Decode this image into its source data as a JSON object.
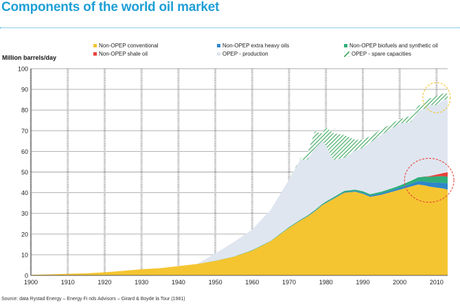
{
  "title": "Components of the world oil market",
  "chart_data": {
    "type": "area",
    "title": "Components of the world oil market",
    "ylabel": "Million barrels/day",
    "xlabel": "",
    "xlim": [
      1900,
      2013
    ],
    "ylim": [
      0,
      100
    ],
    "x_ticks": [
      "1900",
      "1910",
      "1920",
      "1930",
      "1940",
      "1950",
      "1960",
      "1970",
      "1980",
      "1990",
      "2000",
      "2010"
    ],
    "y_ticks": [
      "0",
      "10",
      "20",
      "30",
      "40",
      "50",
      "60",
      "70",
      "80",
      "90",
      "100"
    ],
    "grid": true,
    "stacking": "stacked",
    "x": [
      1900,
      1905,
      1910,
      1915,
      1920,
      1925,
      1930,
      1935,
      1940,
      1945,
      1950,
      1955,
      1960,
      1965,
      1970,
      1973,
      1975,
      1977,
      1979,
      1980,
      1982,
      1985,
      1988,
      1990,
      1992,
      1995,
      1998,
      2000,
      2003,
      2005,
      2007,
      2008,
      2010,
      2012,
      2013
    ],
    "series": [
      {
        "name": "Non-OPEP conventional",
        "color": "#f5c531",
        "values": [
          0.3,
          0.5,
          0.8,
          1.0,
          1.5,
          2.2,
          3.0,
          3.5,
          4.5,
          5.5,
          7.0,
          9.0,
          12.0,
          16.5,
          23.0,
          26.5,
          28.5,
          31.0,
          34.0,
          35.0,
          37.0,
          40.0,
          40.5,
          39.5,
          38.0,
          39.0,
          40.5,
          41.5,
          43.0,
          44.0,
          43.5,
          43.0,
          42.5,
          42.0,
          41.5
        ]
      },
      {
        "name": "Non-OPEP extra heavy oils",
        "color": "#2e86c9",
        "values": [
          0,
          0,
          0,
          0,
          0,
          0,
          0,
          0,
          0,
          0,
          0,
          0,
          0,
          0,
          0.1,
          0.1,
          0.2,
          0.2,
          0.2,
          0.2,
          0.3,
          0.3,
          0.4,
          0.5,
          0.6,
          0.7,
          0.8,
          1.0,
          1.3,
          1.6,
          1.9,
          2.0,
          2.4,
          2.8,
          3.0
        ]
      },
      {
        "name": "Non-OPEP biofuels and synthetic oil",
        "color": "#2fae7a",
        "values": [
          0,
          0,
          0,
          0,
          0,
          0,
          0,
          0,
          0,
          0,
          0.1,
          0.1,
          0.2,
          0.2,
          0.3,
          0.3,
          0.3,
          0.4,
          0.4,
          0.5,
          0.5,
          0.6,
          0.6,
          0.7,
          0.7,
          0.8,
          0.9,
          1.0,
          1.4,
          1.8,
          2.4,
          2.7,
          3.0,
          3.2,
          3.2
        ]
      },
      {
        "name": "Non-OPEP shale oil",
        "color": "#e8413a",
        "values": [
          0,
          0,
          0,
          0,
          0,
          0,
          0,
          0,
          0,
          0,
          0,
          0,
          0,
          0,
          0,
          0,
          0,
          0,
          0,
          0,
          0,
          0,
          0,
          0,
          0,
          0,
          0,
          0,
          0,
          0,
          0.1,
          0.3,
          0.9,
          1.6,
          2.2
        ]
      },
      {
        "name": "OPEP - production",
        "color": "#dfe6f0",
        "values": [
          0,
          0,
          0,
          0,
          0,
          0,
          0,
          0,
          0,
          0,
          3.5,
          7.0,
          10.0,
          15.0,
          23.0,
          29.0,
          27.0,
          30.0,
          30.5,
          27.0,
          18.0,
          16.0,
          19.0,
          21.0,
          25.0,
          27.5,
          29.0,
          30.0,
          28.5,
          32.0,
          33.0,
          34.5,
          33.5,
          35.5,
          35.0
        ]
      },
      {
        "name": "OPEP - spare capacities",
        "color": "#3aa55a",
        "pattern": "hatched",
        "values": [
          0,
          0,
          0,
          0,
          0,
          0,
          0,
          0,
          0,
          0,
          0,
          0,
          0,
          0,
          0,
          0.5,
          3.0,
          8.0,
          3.5,
          9.0,
          13.0,
          11.0,
          5.0,
          4.0,
          3.0,
          2.5,
          2.5,
          2.0,
          3.0,
          2.5,
          3.0,
          3.0,
          4.5,
          3.0,
          3.0
        ]
      }
    ],
    "legend": {
      "position": "top",
      "entries": [
        "Non-OPEP conventional",
        "Non-OPEP extra heavy oils",
        "Non-OPEP biofuels and synthetic oil",
        "Non-OPEP shale oil",
        "OPEP - production",
        "OPEP - spare capacities"
      ]
    },
    "annotations": [
      {
        "type": "dashed-ellipse",
        "color": "#f5c531",
        "center": [
          2010,
          86
        ],
        "note": "highlight"
      },
      {
        "type": "dashed-ellipse",
        "color": "#e8413a",
        "center": [
          2008,
          46
        ],
        "note": "highlight"
      }
    ]
  },
  "source": "Source: data Rystad Energy – Energy Fi nds Advisors – Girard & Boyde la Tour (1981)"
}
